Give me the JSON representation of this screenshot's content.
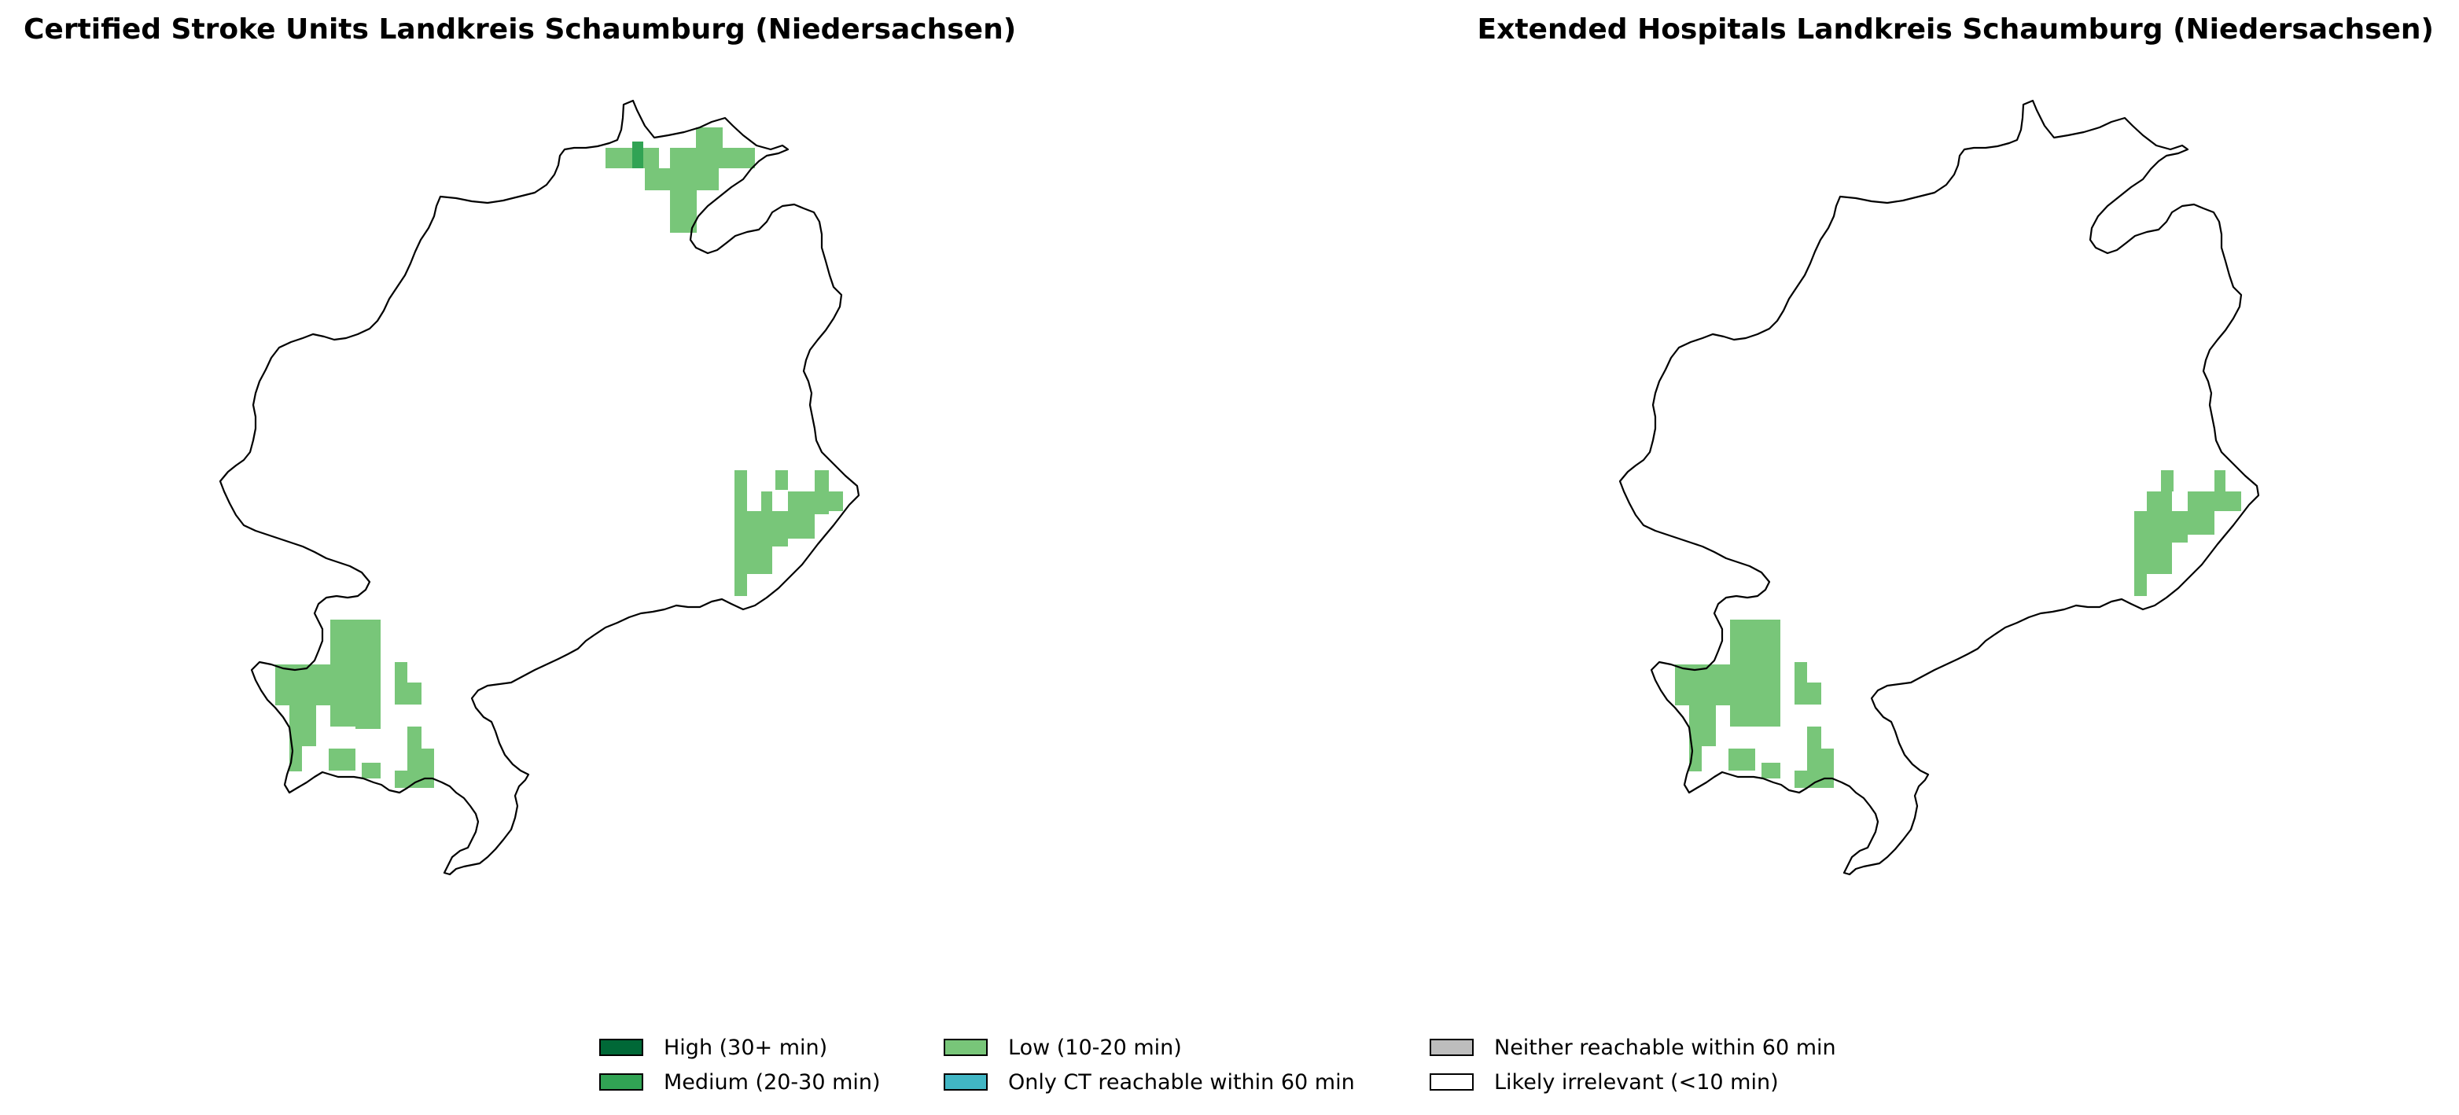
{
  "panels": [
    {
      "title": "Certified Stroke Units Landkreis Schaumburg (Niedersachsen)"
    },
    {
      "title": "Extended Hospitals Landkreis Schaumburg (Niedersachsen)"
    }
  ],
  "legend": [
    {
      "label": "High (30+ min)",
      "color": "#006837"
    },
    {
      "label": "Low (10-20 min)",
      "color": "#78c679"
    },
    {
      "label": "Neither reachable within 60 min",
      "color": "#bdbdbd"
    },
    {
      "label": "Medium (20-30 min)",
      "color": "#31a354"
    },
    {
      "label": "Only CT reachable within 60 min",
      "color": "#41b6c4"
    },
    {
      "label": "Likely irrelevant (<10 min)",
      "color": "#ffffff"
    }
  ],
  "category_colors": {
    "high": "#006837",
    "medium": "#31a354",
    "low": "#78c679",
    "ct_only": "#41b6c4",
    "neither": "#bdbdbd",
    "irrelevant": "#ffffff"
  }
}
